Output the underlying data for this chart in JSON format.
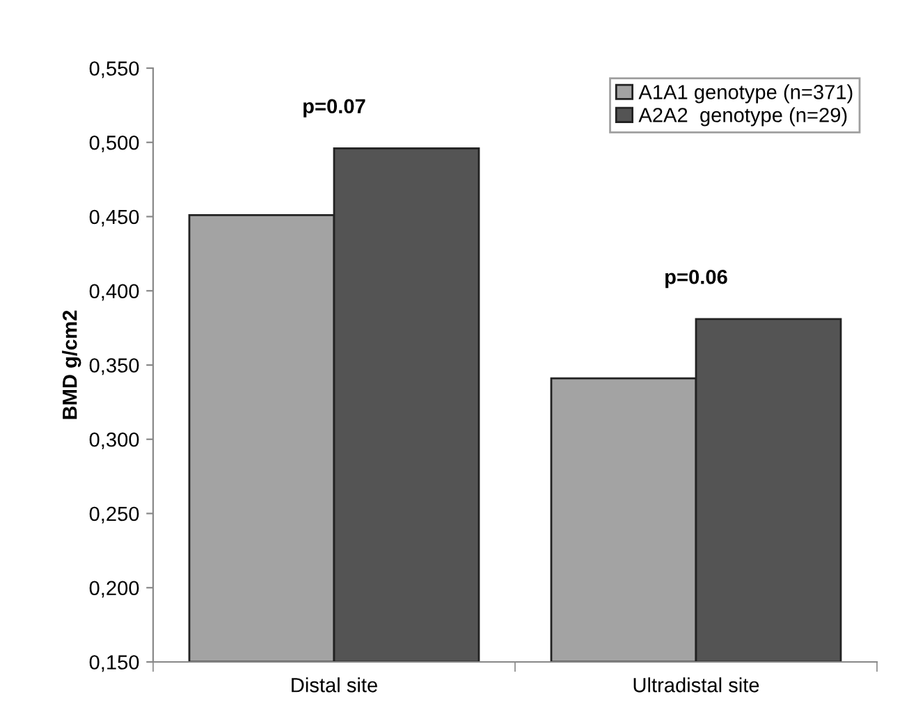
{
  "chart_data": {
    "type": "bar",
    "ylabel": "BMD g/cm2",
    "categories": [
      "Distal site",
      "Ultradistal site"
    ],
    "series": [
      {
        "name": "A1A1 genotype (n=371)",
        "color": "#a3a3a3",
        "values": [
          0.451,
          0.341
        ]
      },
      {
        "name": "A2A2  genotype (n=29)",
        "color": "#545454",
        "values": [
          0.496,
          0.381
        ]
      }
    ],
    "ylim": [
      0.15,
      0.55
    ],
    "yticks": [
      {
        "value": 0.15,
        "label": "0,150"
      },
      {
        "value": 0.2,
        "label": "0,200"
      },
      {
        "value": 0.25,
        "label": "0,250"
      },
      {
        "value": 0.3,
        "label": "0,300"
      },
      {
        "value": 0.35,
        "label": "0,350"
      },
      {
        "value": 0.4,
        "label": "0,400"
      },
      {
        "value": 0.45,
        "label": "0,450"
      },
      {
        "value": 0.5,
        "label": "0,500"
      },
      {
        "value": 0.55,
        "label": "0,550"
      }
    ],
    "annotations": [
      "p=0.07",
      "p=0.06"
    ],
    "legend": "top right",
    "grid": false
  }
}
